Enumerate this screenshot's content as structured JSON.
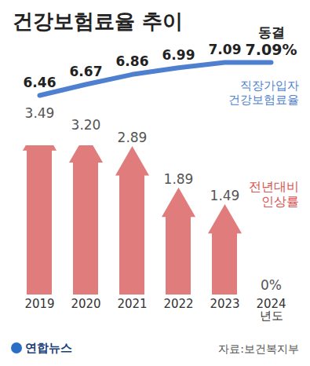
{
  "chart_data": {
    "type": "bar",
    "title": "건강보험료율 추이",
    "categories": [
      "2019",
      "2020",
      "2021",
      "2022",
      "2023",
      "2024\n년도"
    ],
    "series": [
      {
        "name": "전년대비 인상률",
        "type": "bar",
        "color": "#e17c7c",
        "values": [
          3.49,
          3.2,
          2.89,
          1.89,
          1.49,
          0
        ],
        "value_labels": [
          "3.49",
          "3.20",
          "2.89",
          "1.89",
          "1.49",
          "0%"
        ]
      },
      {
        "name": "직장가입자 건강보험료율",
        "type": "line",
        "axis": "y2",
        "color": "#4f7fcf",
        "values": [
          6.46,
          6.67,
          6.86,
          6.99,
          7.09,
          7.09
        ],
        "value_labels": [
          "6.46",
          "6.67",
          "6.86",
          "6.99",
          "7.09",
          "7.09%"
        ]
      }
    ],
    "annotations": [
      "동결"
    ],
    "ylim": [
      0,
      3.6
    ],
    "y2lim": [
      6.4,
      7.15
    ],
    "data_labels": true,
    "tick_labels": "x",
    "grid": false,
    "source": "자료:보건복지부",
    "credit": "연합뉴스"
  }
}
